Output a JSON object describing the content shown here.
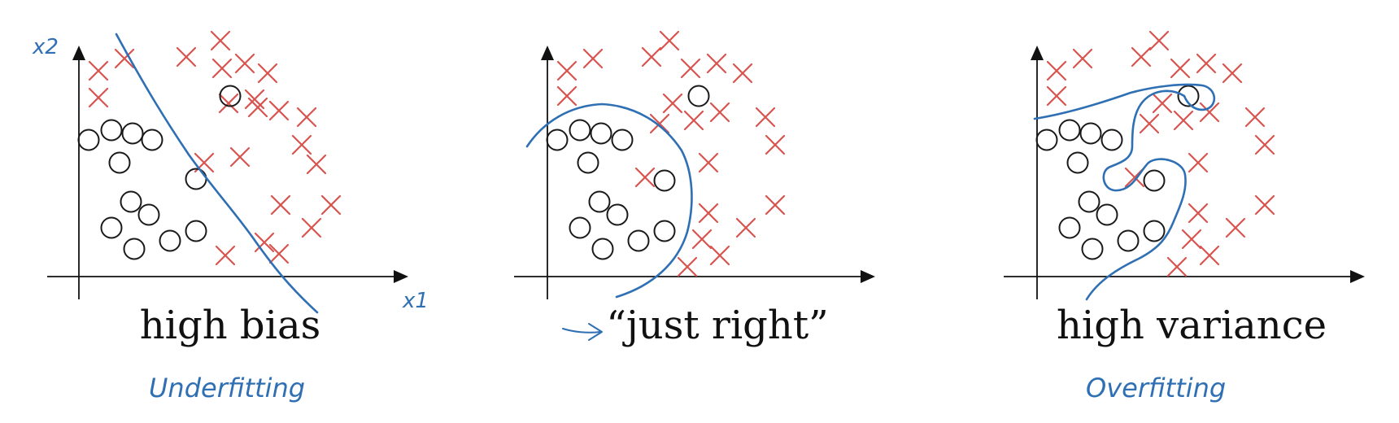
{
  "panels": [
    {
      "id": "high-bias",
      "label": "high bias",
      "handwritten_note": "Underfitting",
      "x_axis_label": "x1",
      "y_axis_label": "x2"
    },
    {
      "id": "just-right",
      "label": "“just right”",
      "handwritten_note": ""
    },
    {
      "id": "high-variance",
      "label": "high variance",
      "handwritten_note": "Overfitting"
    }
  ],
  "colors": {
    "cross": "#d9534f",
    "circle": "#1a1a1a",
    "boundary": "#2f6fb3",
    "axis": "#111111"
  }
}
